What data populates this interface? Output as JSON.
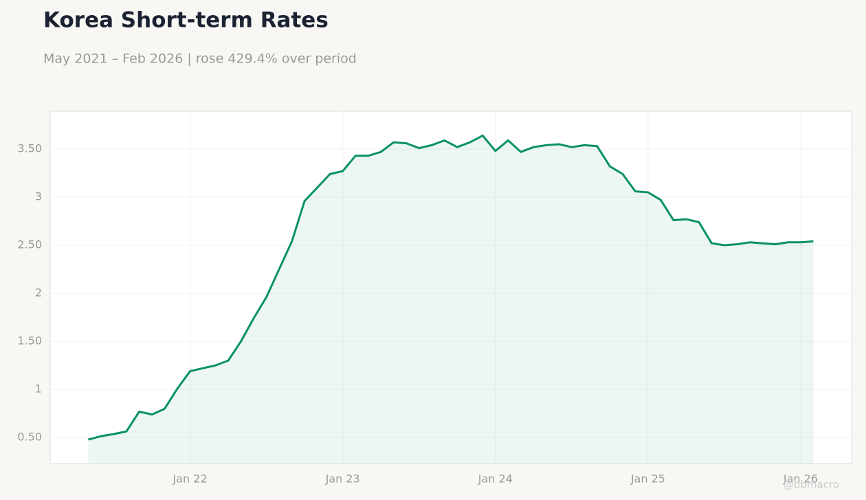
{
  "chart_data": {
    "type": "line",
    "title": "Korea Short-term Rates",
    "subtitle": "May 2021 – Feb 2026 | rose 429.4% over period",
    "watermark": "@bbmacro",
    "color": "#0a9165",
    "x": [
      "2021-05",
      "2021-06",
      "2021-07",
      "2021-08",
      "2021-09",
      "2021-10",
      "2021-11",
      "2021-12",
      "2022-01",
      "2022-02",
      "2022-03",
      "2022-04",
      "2022-05",
      "2022-06",
      "2022-07",
      "2022-08",
      "2022-09",
      "2022-10",
      "2022-11",
      "2022-12",
      "2023-01",
      "2023-02",
      "2023-03",
      "2023-04",
      "2023-05",
      "2023-06",
      "2023-07",
      "2023-08",
      "2023-09",
      "2023-10",
      "2023-11",
      "2023-12",
      "2024-01",
      "2024-02",
      "2024-03",
      "2024-04",
      "2024-05",
      "2024-06",
      "2024-07",
      "2024-08",
      "2024-09",
      "2024-10",
      "2024-11",
      "2024-12",
      "2025-01",
      "2025-02",
      "2025-03",
      "2025-04",
      "2025-05",
      "2025-06",
      "2025-07",
      "2025-08",
      "2025-09",
      "2025-10",
      "2025-11",
      "2025-12",
      "2026-01",
      "2026-02"
    ],
    "values": [
      0.479,
      0.514,
      0.536,
      0.564,
      0.77,
      0.74,
      0.8,
      1.01,
      1.19,
      1.22,
      1.25,
      1.3,
      1.5,
      1.74,
      1.96,
      2.25,
      2.54,
      2.96,
      3.1,
      3.24,
      3.27,
      3.43,
      3.43,
      3.47,
      3.57,
      3.56,
      3.51,
      3.54,
      3.59,
      3.52,
      3.57,
      3.64,
      3.48,
      3.59,
      3.47,
      3.52,
      3.54,
      3.55,
      3.52,
      3.54,
      3.53,
      3.32,
      3.24,
      3.06,
      3.05,
      2.97,
      2.76,
      2.77,
      2.74,
      2.52,
      2.5,
      2.51,
      2.53,
      2.52,
      2.51,
      2.53,
      2.53,
      2.54
    ],
    "xlim": [
      "2021-02",
      "2026-05"
    ],
    "xticks": [
      {
        "value": "2022-01",
        "label": "Jan 22"
      },
      {
        "value": "2023-01",
        "label": "Jan 23"
      },
      {
        "value": "2024-01",
        "label": "Jan 24"
      },
      {
        "value": "2025-01",
        "label": "Jan 25"
      },
      {
        "value": "2026-01",
        "label": "Jan 26"
      }
    ],
    "ylim": [
      0.229,
      3.893
    ],
    "yticks": [
      {
        "value": 0.5,
        "label": "0.50"
      },
      1,
      {
        "value": 1.5,
        "label": "1.50"
      },
      2,
      {
        "value": 2.5,
        "label": "2.50"
      },
      3,
      {
        "value": 3.5,
        "label": "3.50"
      }
    ],
    "grid": true
  }
}
